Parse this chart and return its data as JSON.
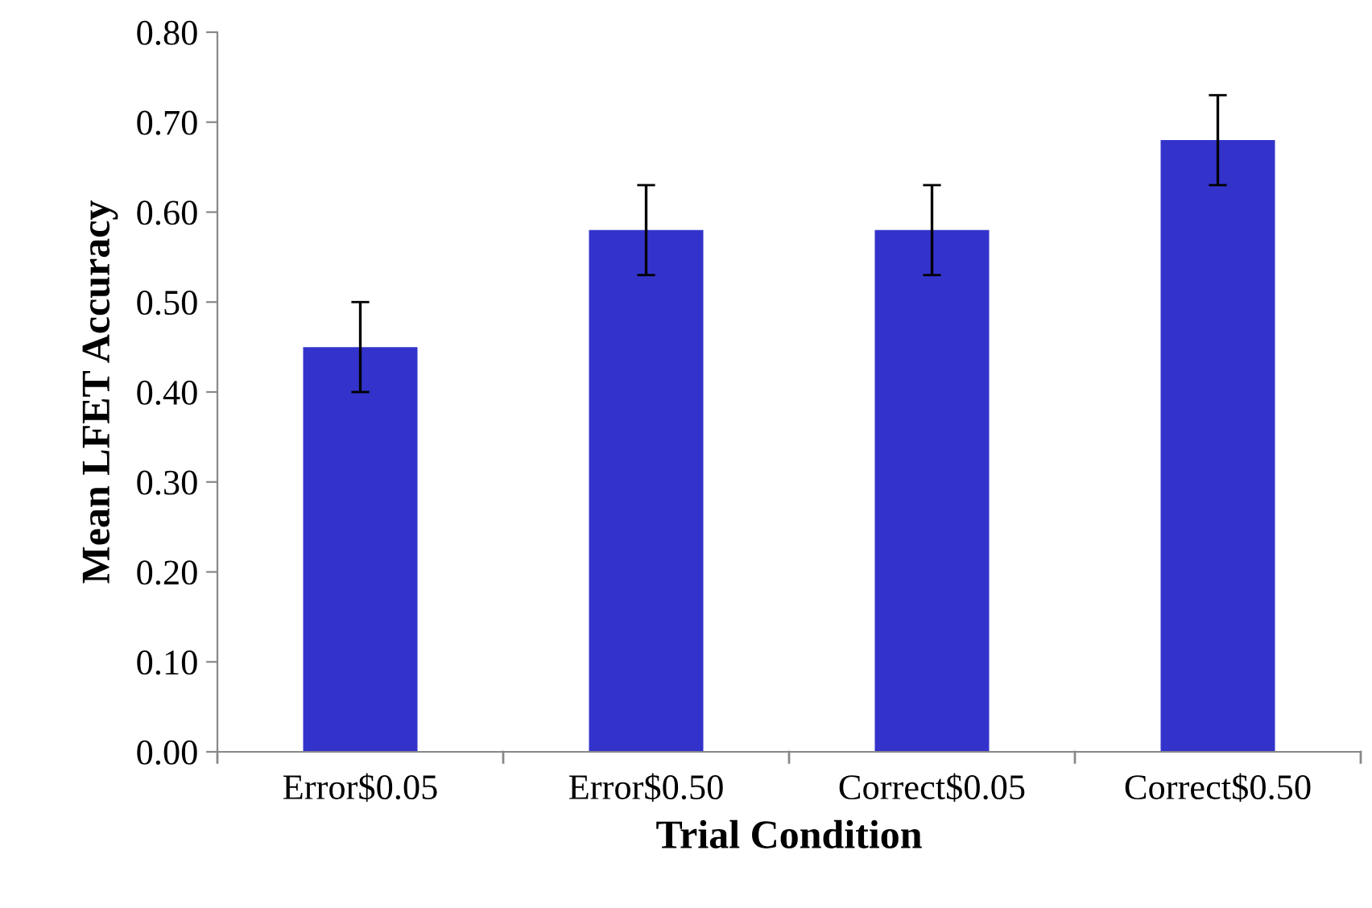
{
  "chart_data": {
    "type": "bar",
    "xlabel": "Trial Condition",
    "ylabel": "Mean LFET Accuracy",
    "categories": [
      "Error$0.05",
      "Error$0.50",
      "Correct$0.05",
      "Correct$0.50"
    ],
    "values": [
      0.45,
      0.58,
      0.58,
      0.68
    ],
    "errors": [
      0.05,
      0.05,
      0.05,
      0.05
    ],
    "color": "#3333cc",
    "ylim": [
      0,
      0.8
    ],
    "yticks": [
      {
        "value": 0,
        "label": "0.00"
      },
      {
        "value": 0.1,
        "label": "0.10"
      },
      {
        "value": 0.2,
        "label": "0.20"
      },
      {
        "value": 0.3,
        "label": "0.30"
      },
      {
        "value": 0.4,
        "label": "0.40"
      },
      {
        "value": 0.5,
        "label": "0.50"
      },
      {
        "value": 0.6,
        "label": "0.60"
      },
      {
        "value": 0.7,
        "label": "0.70"
      },
      {
        "value": 0.8,
        "label": "0.80"
      }
    ],
    "grid": false,
    "legend": false
  }
}
